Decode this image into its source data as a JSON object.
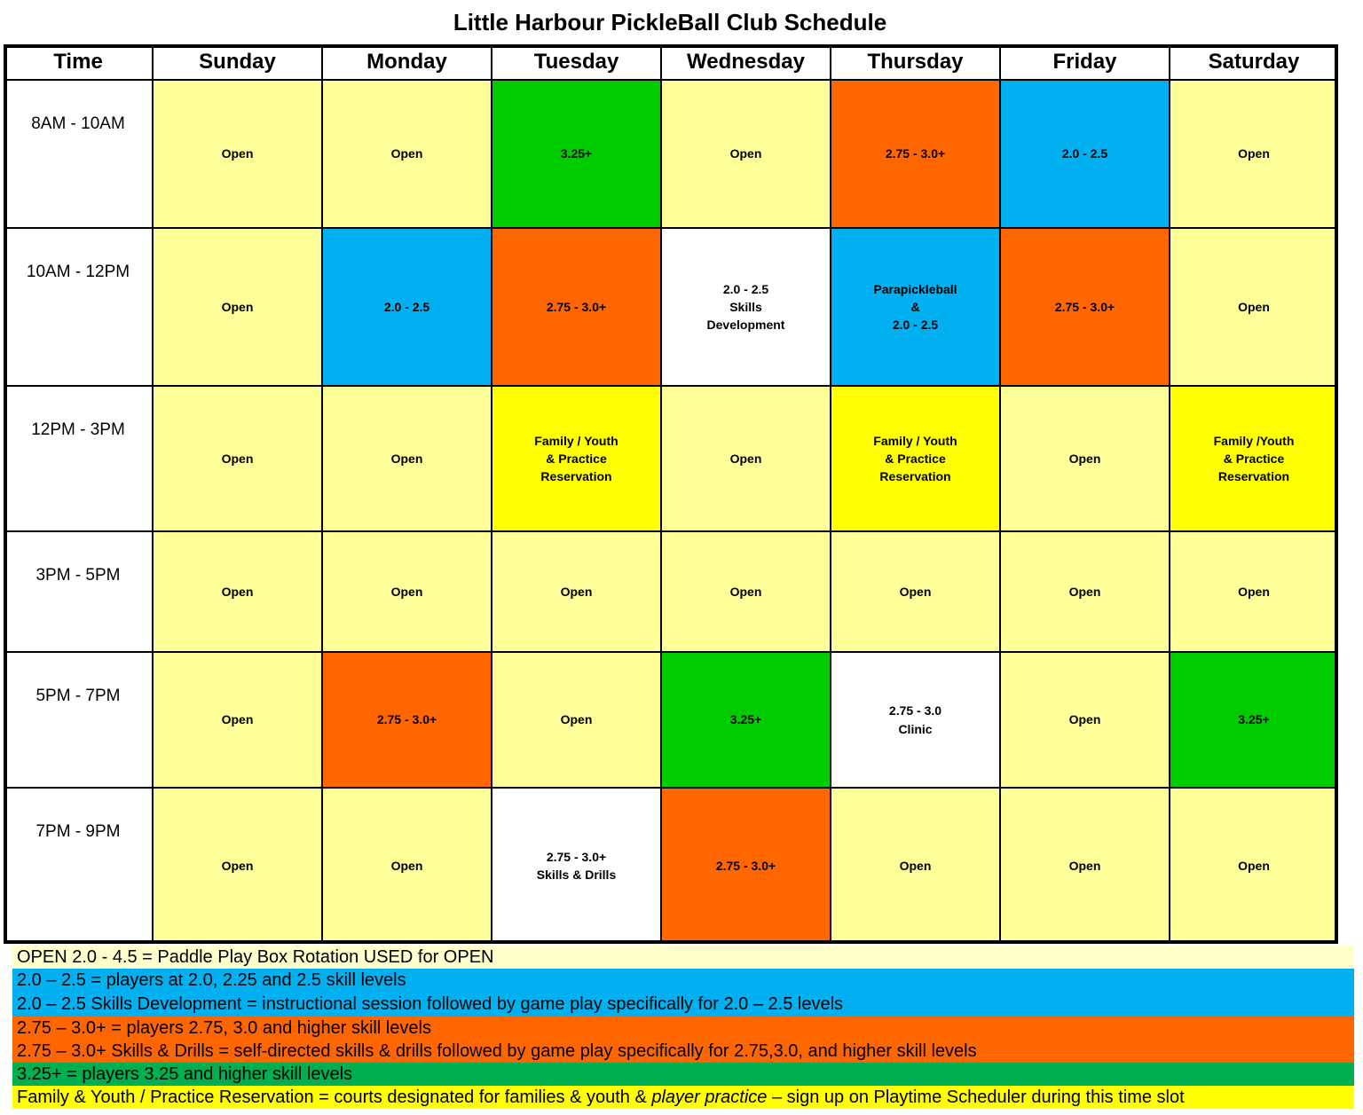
{
  "title": "Little Harbour PickleBall Club Schedule",
  "header": [
    "Time",
    "Sunday",
    "Monday",
    "Tuesday",
    "Wednesday",
    "Thursday",
    "Friday",
    "Saturday"
  ],
  "rows": [
    {
      "time": "8AM - 10AM",
      "cells": [
        {
          "lines": [
            "Open"
          ],
          "color": "#ffff99"
        },
        {
          "lines": [
            "Open"
          ],
          "color": "#ffff99"
        },
        {
          "lines": [
            "3.25+"
          ],
          "color": "#00cc00"
        },
        {
          "lines": [
            "Open"
          ],
          "color": "#ffff99"
        },
        {
          "lines": [
            "2.75 - 3.0+"
          ],
          "color": "#ff6600"
        },
        {
          "lines": [
            "2.0 - 2.5"
          ],
          "color": "#00b0f0"
        },
        {
          "lines": [
            "Open"
          ],
          "color": "#ffff99"
        }
      ]
    },
    {
      "time": "10AM - 12PM",
      "cells": [
        {
          "lines": [
            "Open"
          ],
          "color": "#ffff99"
        },
        {
          "lines": [
            "2.0 - 2.5"
          ],
          "color": "#00b0f0"
        },
        {
          "lines": [
            "2.75 - 3.0+"
          ],
          "color": "#ff6600"
        },
        {
          "lines": [
            "2.0 - 2.5",
            "Skills",
            "Development"
          ],
          "color": "#ffffff"
        },
        {
          "lines": [
            "Parapickleball",
            "&",
            "2.0 - 2.5"
          ],
          "color": "#00b0f0"
        },
        {
          "lines": [
            "2.75 - 3.0+"
          ],
          "color": "#ff6600"
        },
        {
          "lines": [
            "Open"
          ],
          "color": "#ffff99"
        }
      ]
    },
    {
      "time": "12PM - 3PM",
      "cells": [
        {
          "lines": [
            "Open"
          ],
          "color": "#ffff99"
        },
        {
          "lines": [
            "Open"
          ],
          "color": "#ffff99"
        },
        {
          "lines": [
            "Family / Youth",
            "& Practice",
            "Reservation"
          ],
          "color": "#ffff00"
        },
        {
          "lines": [
            "Open"
          ],
          "color": "#ffff99"
        },
        {
          "lines": [
            "Family / Youth",
            "& Practice",
            "Reservation"
          ],
          "color": "#ffff00"
        },
        {
          "lines": [
            "Open"
          ],
          "color": "#ffff99"
        },
        {
          "lines": [
            "Family /Youth",
            "& Practice",
            "Reservation"
          ],
          "color": "#ffff00"
        }
      ]
    },
    {
      "time": "3PM - 5PM",
      "cells": [
        {
          "lines": [
            "Open"
          ],
          "color": "#ffff99"
        },
        {
          "lines": [
            "Open"
          ],
          "color": "#ffff99"
        },
        {
          "lines": [
            "Open"
          ],
          "color": "#ffff99"
        },
        {
          "lines": [
            "Open"
          ],
          "color": "#ffff99"
        },
        {
          "lines": [
            "Open"
          ],
          "color": "#ffff99"
        },
        {
          "lines": [
            "Open"
          ],
          "color": "#ffff99"
        },
        {
          "lines": [
            "Open"
          ],
          "color": "#ffff99"
        }
      ]
    },
    {
      "time": "5PM - 7PM",
      "cells": [
        {
          "lines": [
            "Open"
          ],
          "color": "#ffff99"
        },
        {
          "lines": [
            "2.75 - 3.0+"
          ],
          "color": "#ff6600"
        },
        {
          "lines": [
            "Open"
          ],
          "color": "#ffff99"
        },
        {
          "lines": [
            "3.25+"
          ],
          "color": "#00cc00"
        },
        {
          "lines": [
            "2.75 - 3.0",
            "Clinic"
          ],
          "color": "#ffffff"
        },
        {
          "lines": [
            "Open"
          ],
          "color": "#ffff99"
        },
        {
          "lines": [
            "3.25+"
          ],
          "color": "#00cc00"
        }
      ]
    },
    {
      "time": "7PM - 9PM",
      "cells": [
        {
          "lines": [
            "Open"
          ],
          "color": "#ffff99"
        },
        {
          "lines": [
            "Open"
          ],
          "color": "#ffff99"
        },
        {
          "lines": [
            "2.75 - 3.0+",
            "Skills & Drills"
          ],
          "color": "#ffffff"
        },
        {
          "lines": [
            "2.75 - 3.0+"
          ],
          "color": "#ff6600"
        },
        {
          "lines": [
            "Open"
          ],
          "color": "#ffff99"
        },
        {
          "lines": [
            "Open"
          ],
          "color": "#ffff99"
        },
        {
          "lines": [
            "Open"
          ],
          "color": "#ffff99"
        }
      ]
    }
  ],
  "legend": [
    {
      "color": "#ffffcc",
      "parts": [
        {
          "text": "OPEN 2.0 - 4.5 = Paddle Play Box Rotation USED for OPEN"
        }
      ]
    },
    {
      "color": "#00b0f0",
      "parts": [
        {
          "text": "2.0 – 2.5 = players at 2.0, 2.25 and 2.5 skill levels"
        }
      ]
    },
    {
      "color": "#00b0f0",
      "parts": [
        {
          "text": "2.0 – 2.5 Skills Development = instructional session followed by game play specifically for 2.0 – 2.5 levels"
        }
      ]
    },
    {
      "color": "#ff6600",
      "parts": [
        {
          "text": "2.75 – 3.0+ = players 2.75, 3.0 and higher skill levels"
        }
      ]
    },
    {
      "color": "#ff6600",
      "parts": [
        {
          "text": "2.75 – 3.0+ Skills & Drills = self-directed skills & drills followed by game play specifically for 2.75,3.0, and higher skill levels"
        }
      ]
    },
    {
      "color": "#00b050",
      "parts": [
        {
          "text": "3.25+ = players 3.25 and higher skill levels"
        }
      ]
    },
    {
      "color": "#ffff00",
      "parts": [
        {
          "text": "Family & Youth / Practice Reservation = courts designated for families & youth & "
        },
        {
          "text": "player practice",
          "italic": true
        },
        {
          "text": " – sign up on Playtime Scheduler during this time slot"
        }
      ]
    }
  ]
}
